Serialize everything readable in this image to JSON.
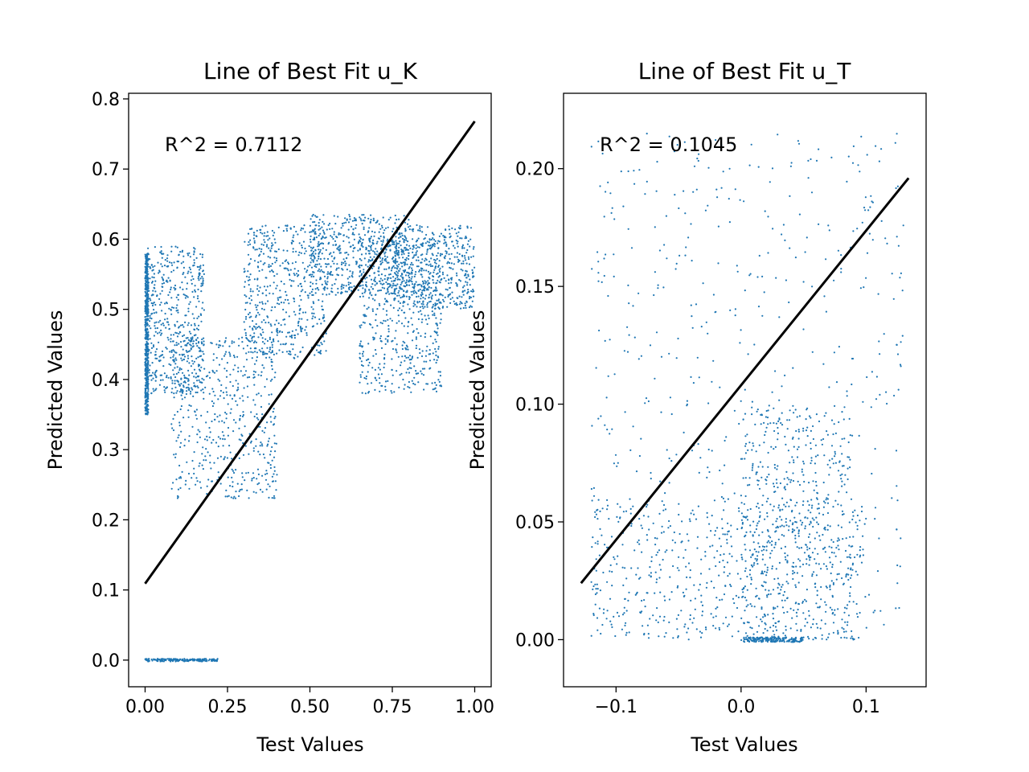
{
  "chart_data": [
    {
      "type": "scatter",
      "title": "Line of Best Fit u_K",
      "xlabel": "Test Values",
      "ylabel": "Predicted Values",
      "annotation": "R^2 = 0.7112",
      "xlim": [
        -0.05,
        1.05
      ],
      "ylim": [
        -0.038,
        0.808
      ],
      "xticks": [
        0.0,
        0.25,
        0.5,
        0.75,
        1.0
      ],
      "xtick_labels": [
        "0.00",
        "0.25",
        "0.50",
        "0.75",
        "1.00"
      ],
      "yticks": [
        0.0,
        0.1,
        0.2,
        0.3,
        0.4,
        0.5,
        0.6,
        0.7,
        0.8
      ],
      "ytick_labels": [
        "0.0",
        "0.1",
        "0.2",
        "0.3",
        "0.4",
        "0.5",
        "0.6",
        "0.7",
        "0.8"
      ],
      "point_color": "#1f77b4",
      "line_color": "#000000",
      "fit_line": {
        "x": [
          0.0,
          1.0
        ],
        "y": [
          0.109,
          0.768
        ]
      },
      "point_regions": [
        {
          "x": [
            0.0,
            0.01
          ],
          "y": [
            0.35,
            0.58
          ]
        },
        {
          "x": [
            0.0,
            0.18
          ],
          "y": [
            0.38,
            0.59
          ]
        },
        {
          "x": [
            0.08,
            0.4
          ],
          "y": [
            0.23,
            0.46
          ]
        },
        {
          "x": [
            0.3,
            0.55
          ],
          "y": [
            0.43,
            0.62
          ]
        },
        {
          "x": [
            0.5,
            0.8
          ],
          "y": [
            0.52,
            0.635
          ]
        },
        {
          "x": [
            0.65,
            0.9
          ],
          "y": [
            0.38,
            0.6
          ]
        },
        {
          "x": [
            0.75,
            1.0
          ],
          "y": [
            0.5,
            0.62
          ]
        },
        {
          "x": [
            0.0,
            0.22
          ],
          "y": [
            -0.002,
            0.002
          ]
        }
      ]
    },
    {
      "type": "scatter",
      "title": "Line of Best Fit u_T",
      "xlabel": "Test Values",
      "ylabel": "Predicted Values",
      "annotation": "R^2 = 0.1045",
      "xlim": [
        -0.142,
        0.148
      ],
      "ylim": [
        -0.02,
        0.232
      ],
      "xticks": [
        -0.1,
        0.0,
        0.1
      ],
      "xtick_labels": [
        "−0.1",
        "0.0",
        "0.1"
      ],
      "yticks": [
        0.0,
        0.05,
        0.1,
        0.15,
        0.2
      ],
      "ytick_labels": [
        "0.00",
        "0.05",
        "0.10",
        "0.15",
        "0.20"
      ],
      "point_color": "#1f77b4",
      "line_color": "#000000",
      "fit_line": {
        "x": [
          -0.128,
          0.134
        ],
        "y": [
          0.024,
          0.196
        ]
      },
      "point_regions": [
        {
          "x": [
            -0.12,
            0.13
          ],
          "y": [
            0.0,
            0.215
          ]
        },
        {
          "x": [
            -0.12,
            0.1
          ],
          "y": [
            0.0,
            0.06
          ]
        },
        {
          "x": [
            0.0,
            0.09
          ],
          "y": [
            0.0,
            0.1
          ]
        },
        {
          "x": [
            0.0,
            0.05
          ],
          "y": [
            -0.001,
            0.001
          ]
        }
      ]
    }
  ]
}
